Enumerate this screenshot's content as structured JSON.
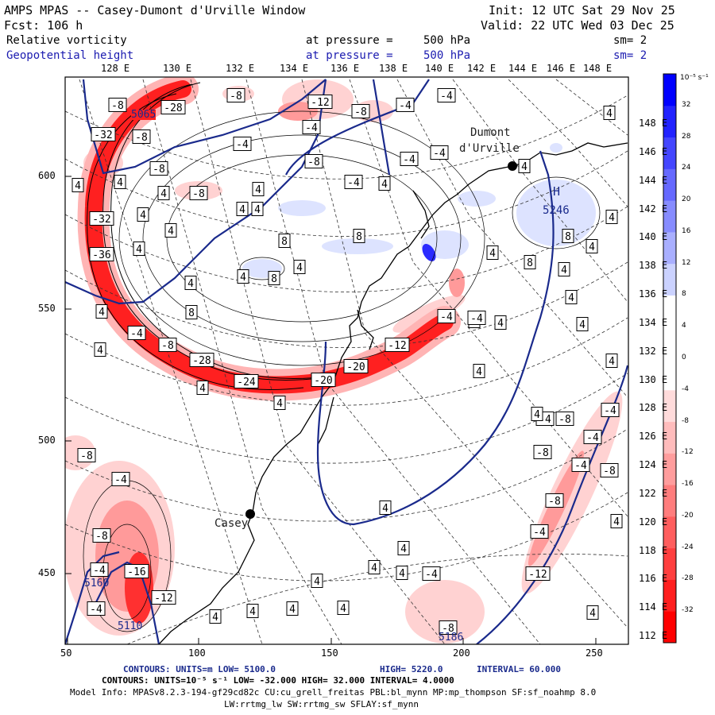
{
  "header": {
    "title": "AMPS MPAS -- Casey-Dumont d'Urville Window",
    "init": "Init: 12 UTC Sat 29 Nov 25",
    "fcst": "Fcst:  106 h",
    "valid": "Valid: 22 UTC Wed 03 Dec 25",
    "field1": "Relative vorticity",
    "field1_level_label": "at pressure =",
    "field1_level_value": "500 hPa",
    "field1_sm": "sm= 2",
    "field2": "Geopotential height",
    "field2_level_label": "at pressure =",
    "field2_level_value": "500 hPa",
    "field2_sm": "sm= 2"
  },
  "colors": {
    "height_contour": "#1a2a8c",
    "neg_strong": "#ff0000",
    "neg_weak": "#ffd6d6",
    "pos_strong": "#0000ff",
    "pos_weak": "#dde4ff"
  },
  "lon_top_labels": [
    "128 E",
    "130 E",
    "132 E",
    "134 E",
    "136 E",
    "138 E",
    "140 E",
    "142 E",
    "144 E",
    "146 E",
    "148 E"
  ],
  "lat_right_labels": [
    "148 E",
    "146 E",
    "144 E",
    "142 E",
    "140 E",
    "138 E",
    "136 E",
    "134 E",
    "132 E",
    "130 E",
    "128 E",
    "126 E",
    "124 E",
    "122 E",
    "120 E",
    "118 E",
    "116 E",
    "114 E",
    "112 E"
  ],
  "y_axis": [
    "600",
    "550",
    "500",
    "450"
  ],
  "x_axis": [
    "50",
    "100",
    "150",
    "200",
    "250"
  ],
  "places": {
    "casey": "Casey",
    "dumont1": "Dumont",
    "dumont2": "d'Urville"
  },
  "annotations": {
    "high_marker": "H",
    "high_value": "5246",
    "h5065": "5065",
    "h5160": "5160",
    "h5110": "5110",
    "h5186": "5186"
  },
  "colorbar": {
    "unit_label": "10⁻⁵ s⁻¹",
    "ticks": [
      "32",
      "28",
      "24",
      "20",
      "16",
      "12",
      "8",
      "4",
      "0",
      "-4",
      "-8",
      "-12",
      "-16",
      "-20",
      "-24",
      "-28",
      "-32"
    ]
  },
  "box_labels": [
    {
      "t": "-8"
    },
    {
      "t": "-28"
    },
    {
      "t": "-8"
    },
    {
      "t": "-12"
    },
    {
      "t": "-8"
    },
    {
      "t": "-4"
    },
    {
      "t": "-4"
    },
    {
      "t": "-32"
    },
    {
      "t": "-8"
    },
    {
      "t": "-4"
    },
    {
      "t": "-4"
    },
    {
      "t": "4"
    },
    {
      "t": "4"
    },
    {
      "t": "-4"
    },
    {
      "t": "-8"
    },
    {
      "t": "-4"
    },
    {
      "t": "-8"
    },
    {
      "t": "4"
    },
    {
      "t": "4"
    },
    {
      "t": "4"
    },
    {
      "t": "-8"
    },
    {
      "t": "-4"
    },
    {
      "t": "4"
    },
    {
      "t": "-32"
    },
    {
      "t": "4"
    },
    {
      "t": "4"
    },
    {
      "t": "4"
    },
    {
      "t": "4"
    },
    {
      "t": "-36"
    },
    {
      "t": "4"
    },
    {
      "t": "8"
    },
    {
      "t": "8"
    },
    {
      "t": "4"
    },
    {
      "t": "8"
    },
    {
      "t": "4"
    },
    {
      "t": "4"
    },
    {
      "t": "4"
    },
    {
      "t": "8"
    },
    {
      "t": "4"
    },
    {
      "t": "8"
    },
    {
      "t": "4"
    },
    {
      "t": "4"
    },
    {
      "t": "4"
    },
    {
      "t": "8"
    },
    {
      "t": "4"
    },
    {
      "t": "4"
    },
    {
      "t": "-4"
    },
    {
      "t": "4"
    },
    {
      "t": "4"
    },
    {
      "t": "-12"
    },
    {
      "t": "4"
    },
    {
      "t": "-4"
    },
    {
      "t": "-8"
    },
    {
      "t": "-28"
    },
    {
      "t": "-24"
    },
    {
      "t": "-20"
    },
    {
      "t": "4"
    },
    {
      "t": "-20"
    },
    {
      "t": "4"
    },
    {
      "t": "4"
    },
    {
      "t": "4"
    },
    {
      "t": "4"
    },
    {
      "t": "-4"
    },
    {
      "t": "-4"
    },
    {
      "t": "-8"
    },
    {
      "t": "-4"
    },
    {
      "t": "-4"
    },
    {
      "t": "-8"
    },
    {
      "t": "-4"
    },
    {
      "t": "-8"
    },
    {
      "t": "4"
    },
    {
      "t": "4"
    },
    {
      "t": "4"
    },
    {
      "t": "4"
    },
    {
      "t": "-4"
    },
    {
      "t": "4"
    },
    {
      "t": "-8"
    },
    {
      "t": "-16"
    },
    {
      "t": "-12"
    },
    {
      "t": "-4"
    },
    {
      "t": "4"
    },
    {
      "t": "-4"
    },
    {
      "t": "4"
    },
    {
      "t": "4"
    },
    {
      "t": "4"
    },
    {
      "t": "4"
    },
    {
      "t": "-8"
    },
    {
      "t": "-12"
    },
    {
      "t": "4"
    },
    {
      "t": "-8"
    },
    {
      "t": "-4"
    },
    {
      "t": "-4"
    },
    {
      "t": "4"
    },
    {
      "t": "-8"
    }
  ],
  "footer": {
    "line1_prefix": "CONTOURS:  UNITS=m  LOW=  5100.0",
    "line1_mid": "HIGH=  5220.0",
    "line1_end": "INTERVAL=   60.000",
    "line2": "CONTOURS:  UNITS=10⁻⁵ s⁻¹  LOW= -32.000       HIGH=  32.000     INTERVAL=  4.0000",
    "line3": "Model Info: MPASv8.2.3-194-gf29cd82c CU:cu_grell_freitas PBL:bl_mynn MP:mp_thompson SF:sf_noahmp 8.0",
    "line4": "LW:rrtmg_lw SW:rrtmg_sw SFLAY:sf_mynn"
  }
}
